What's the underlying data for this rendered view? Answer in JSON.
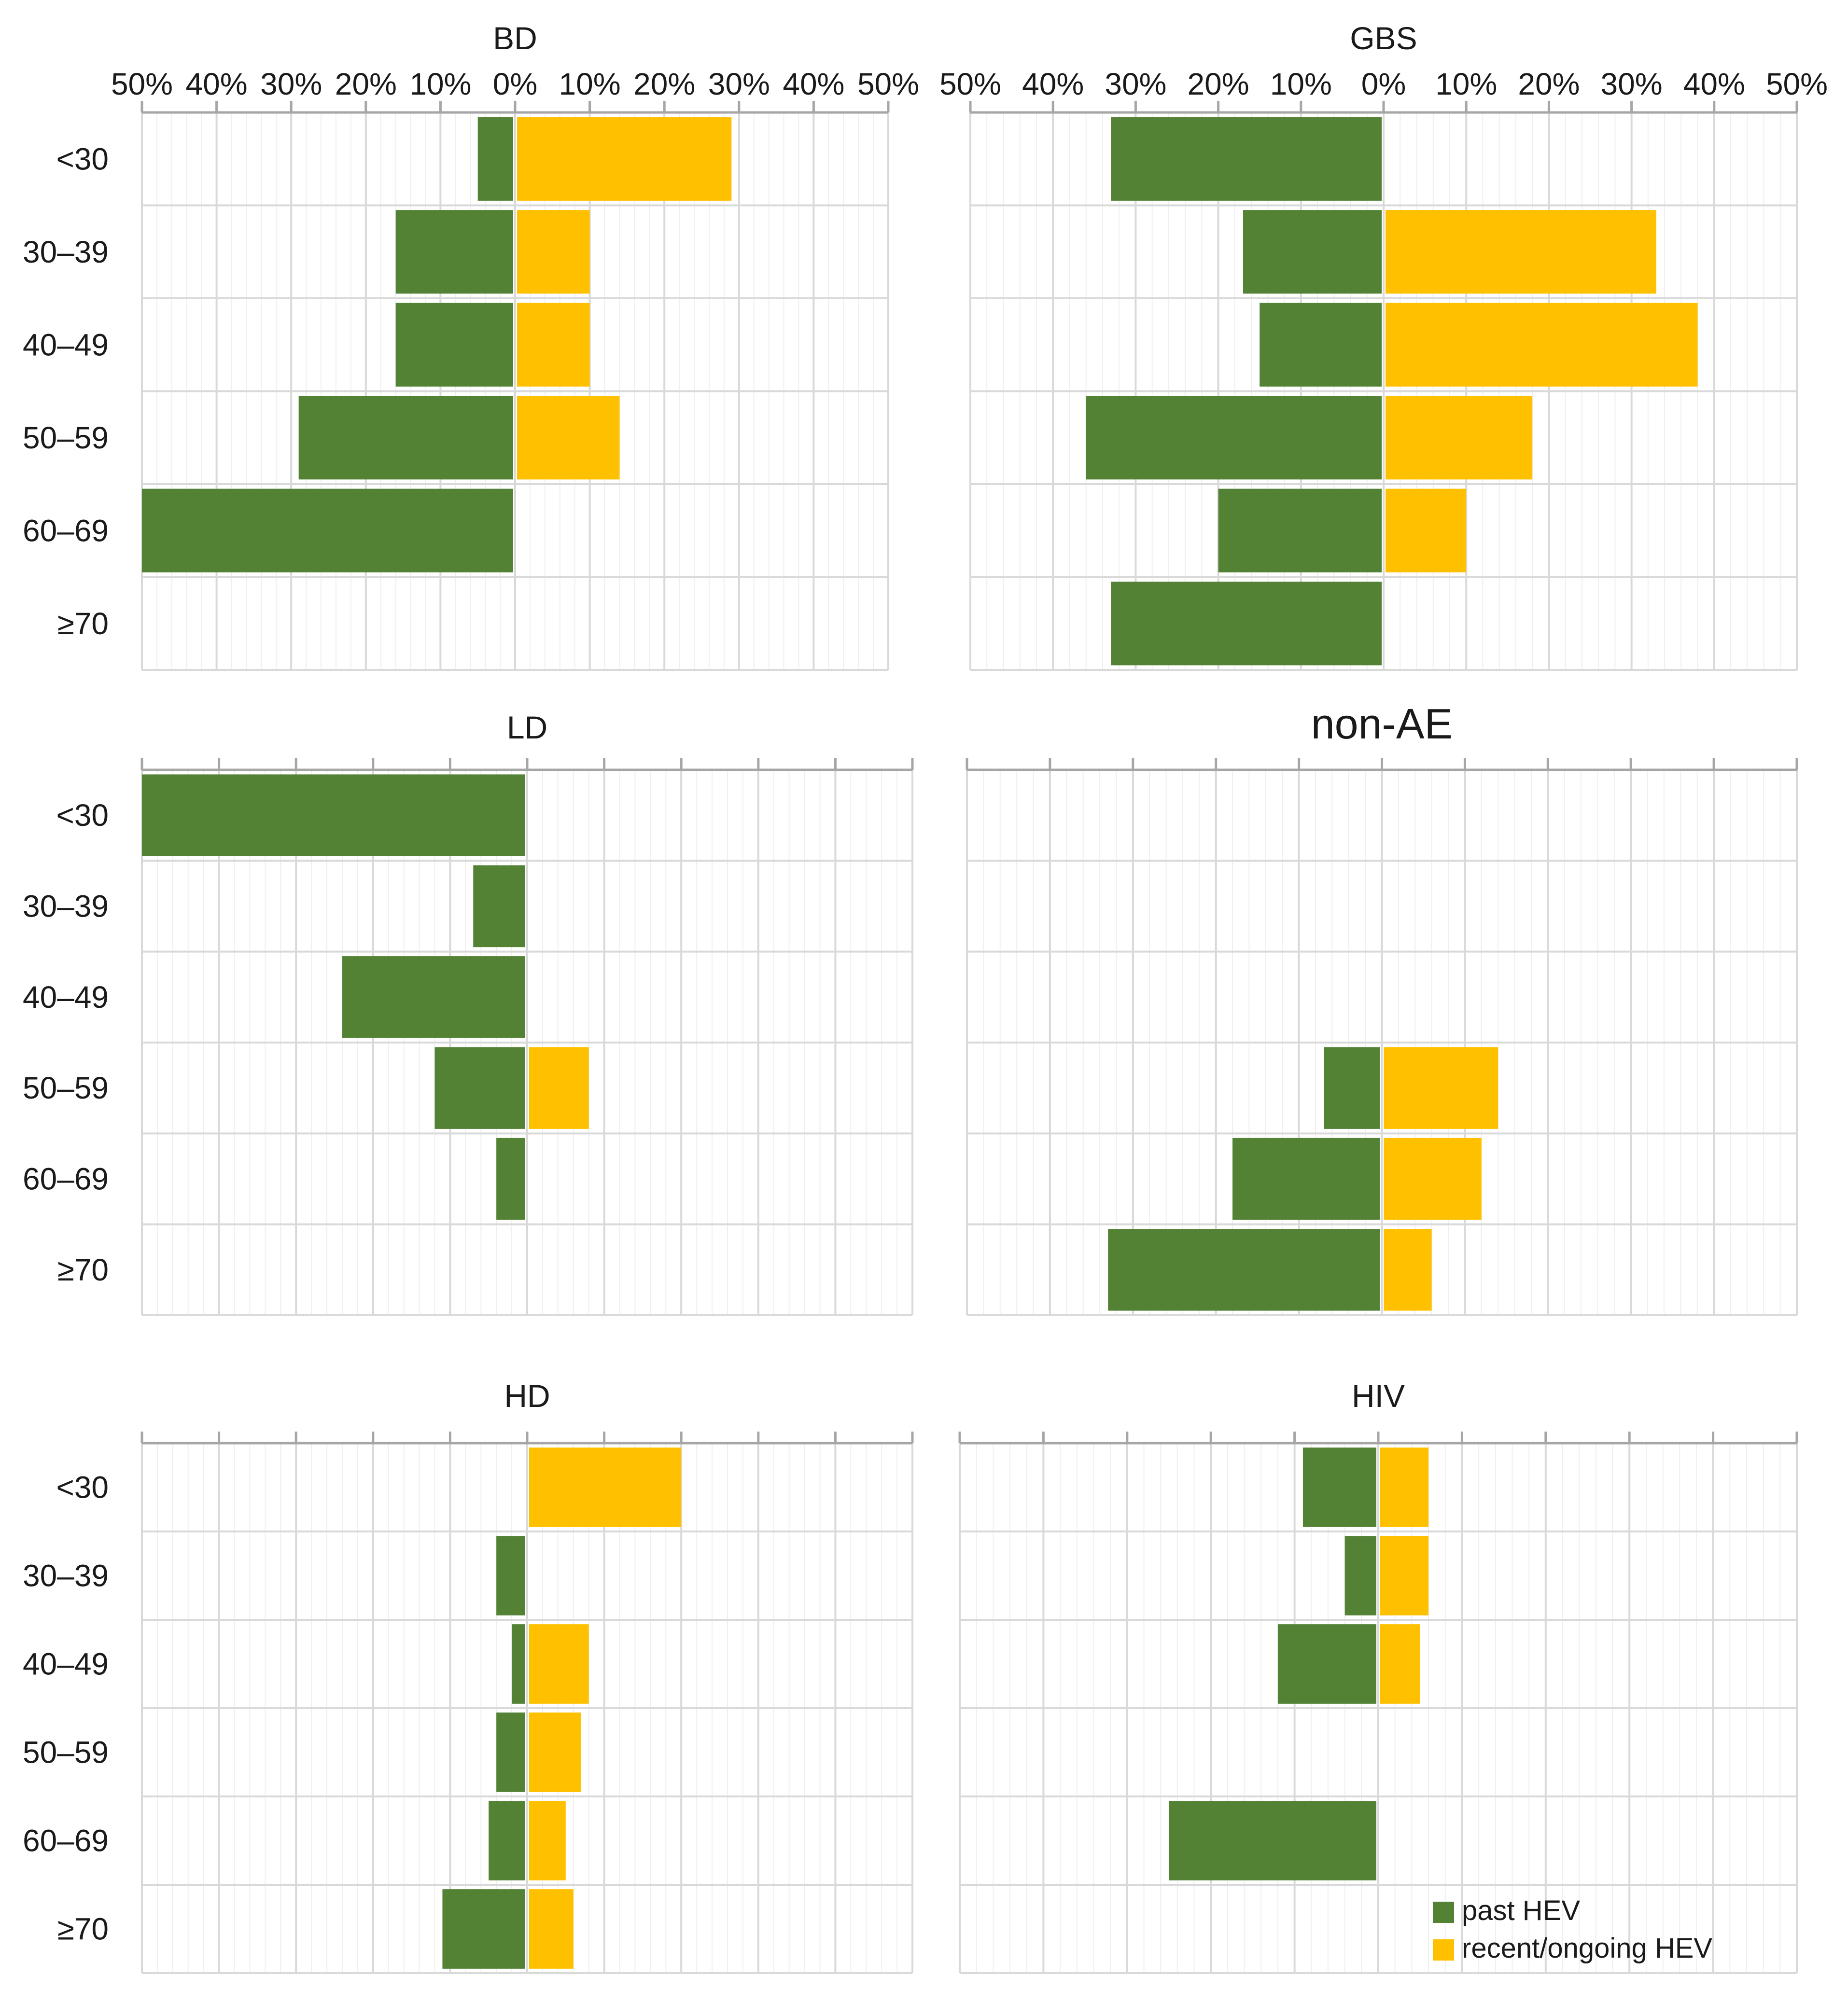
{
  "colors": {
    "past": "#548235",
    "recent": "#FFC000",
    "grid": "#d9d9d9",
    "minorgrid": "#efefef",
    "axis": "#a6a6a6"
  },
  "legend": {
    "past_label": "past HEV",
    "recent_label": "recent/ongoing HEV"
  },
  "chart_data": [
    {
      "type": "bar",
      "orientation": "horizontal",
      "stacking": "diverging",
      "title": "BD",
      "categories": [
        "<30",
        "30–39",
        "40–49",
        "50–59",
        "60–69",
        "≥70"
      ],
      "xlim_left": 50,
      "xlim_right": 50,
      "x_tick_labels": [
        "50%",
        "40%",
        "30%",
        "20%",
        "10%",
        "0%",
        "10%",
        "20%",
        "30%",
        "40%",
        "50%"
      ],
      "series": [
        {
          "name": "past HEV",
          "direction": "left",
          "values": [
            5,
            16,
            16,
            29,
            50,
            0
          ]
        },
        {
          "name": "recent/ongoing HEV",
          "direction": "right",
          "values": [
            29,
            10,
            10,
            14,
            0,
            0
          ]
        }
      ]
    },
    {
      "type": "bar",
      "orientation": "horizontal",
      "stacking": "diverging",
      "title": "GBS",
      "categories": [
        "<30",
        "30–39",
        "40–49",
        "50–59",
        "60–69",
        "≥70"
      ],
      "xlim_left": 50,
      "xlim_right": 50,
      "x_tick_labels": [
        "50%",
        "40%",
        "30%",
        "20%",
        "10%",
        "0%",
        "10%",
        "20%",
        "30%",
        "40%",
        "50%"
      ],
      "series": [
        {
          "name": "past HEV",
          "direction": "left",
          "values": [
            33,
            17,
            15,
            36,
            20,
            33
          ]
        },
        {
          "name": "recent/ongoing HEV",
          "direction": "right",
          "values": [
            0,
            33,
            38,
            18,
            10,
            0
          ]
        }
      ]
    },
    {
      "type": "bar",
      "orientation": "horizontal",
      "stacking": "diverging",
      "title": "LD",
      "categories": [
        "<30",
        "30–39",
        "40–49",
        "50–59",
        "60–69",
        "≥70"
      ],
      "xlim_left": 50,
      "xlim_right": 50,
      "series": [
        {
          "name": "past HEV",
          "direction": "left",
          "values": [
            50,
            7,
            24,
            12,
            4,
            0
          ]
        },
        {
          "name": "recent/ongoing HEV",
          "direction": "right",
          "values": [
            0,
            0,
            0,
            8,
            0,
            0
          ]
        }
      ]
    },
    {
      "type": "bar",
      "orientation": "horizontal",
      "stacking": "diverging",
      "title": "non-AE",
      "categories": [
        "<30",
        "30–39",
        "40–49",
        "50–59",
        "60–69",
        "≥70"
      ],
      "xlim_left": 50,
      "xlim_right": 50,
      "series": [
        {
          "name": "past HEV",
          "direction": "left",
          "values": [
            0,
            0,
            0,
            7,
            18,
            33
          ]
        },
        {
          "name": "recent/ongoing HEV",
          "direction": "right",
          "values": [
            0,
            0,
            0,
            14,
            12,
            6
          ]
        }
      ]
    },
    {
      "type": "bar",
      "orientation": "horizontal",
      "stacking": "diverging",
      "title": "HD",
      "categories": [
        "<30",
        "30–39",
        "40–49",
        "50–59",
        "60–69",
        "≥70"
      ],
      "xlim_left": 50,
      "xlim_right": 50,
      "series": [
        {
          "name": "past HEV",
          "direction": "left",
          "values": [
            0,
            4,
            2,
            4,
            5,
            11
          ]
        },
        {
          "name": "recent/ongoing HEV",
          "direction": "right",
          "values": [
            20,
            0,
            8,
            7,
            5,
            6
          ]
        }
      ]
    },
    {
      "type": "bar",
      "orientation": "horizontal",
      "stacking": "diverging",
      "title": "HIV",
      "categories": [
        "<30",
        "30–39",
        "40–49",
        "50–59",
        "60–69",
        "≥70"
      ],
      "xlim_left": 50,
      "xlim_right": 50,
      "series": [
        {
          "name": "past HEV",
          "direction": "left",
          "values": [
            9,
            4,
            12,
            0,
            25,
            0
          ]
        },
        {
          "name": "recent/ongoing HEV",
          "direction": "right",
          "values": [
            6,
            6,
            5,
            0,
            0,
            0
          ]
        }
      ]
    }
  ]
}
